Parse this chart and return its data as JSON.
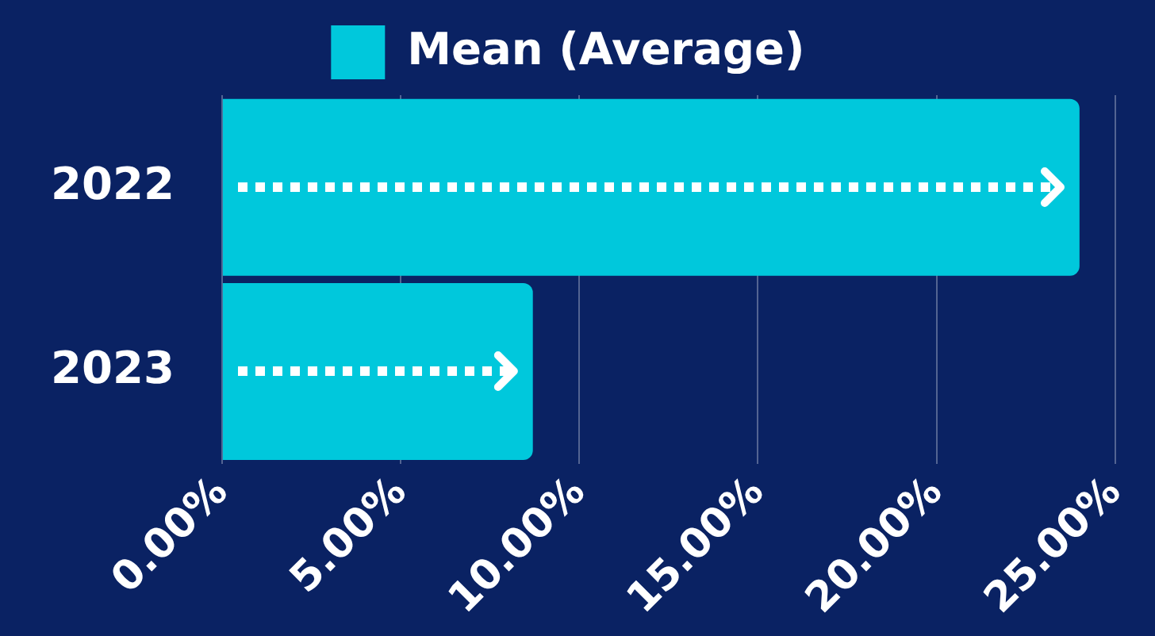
{
  "chart_data": {
    "type": "bar",
    "orientation": "horizontal",
    "categories": [
      "2022",
      "2023"
    ],
    "series": [
      {
        "name": "Mean (Average)",
        "color": "#00c8dc",
        "values": [
          24.0,
          8.7
        ]
      }
    ],
    "xlim": [
      0,
      25
    ],
    "xticks": [
      {
        "value": 0,
        "label": "0.00%"
      },
      {
        "value": 5,
        "label": "5.00%"
      },
      {
        "value": 10,
        "label": "10.00%"
      },
      {
        "value": 15,
        "label": "15.00%"
      },
      {
        "value": 20,
        "label": "20.00%"
      },
      {
        "value": 25,
        "label": "25.00%"
      }
    ],
    "grid": "x",
    "legend": "top"
  }
}
